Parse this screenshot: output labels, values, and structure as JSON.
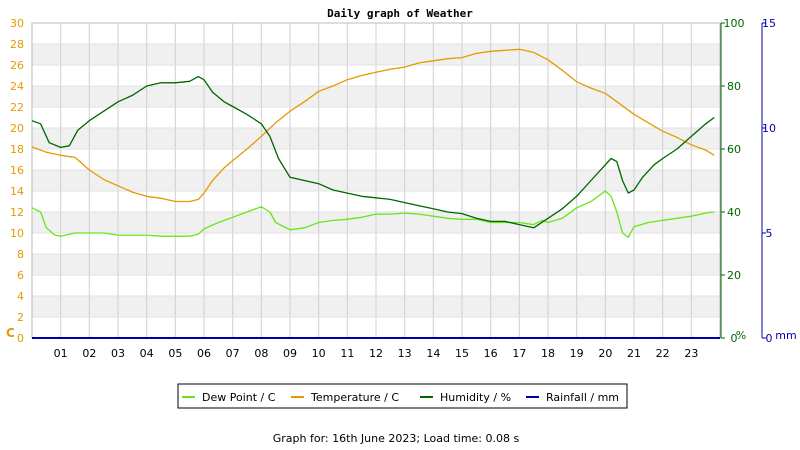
{
  "page": {
    "title": "Daily graph of Weather",
    "footer": "Graph for: 16th June 2023; Load time: 0.08 s"
  },
  "colors": {
    "dew_point": "#66e619",
    "temperature": "#e69a00",
    "humidity": "#006600",
    "rainfall": "#0000aa",
    "band": "#f0f0f0",
    "grid": "#cfcfcf"
  },
  "chart_data": {
    "type": "line",
    "title": "Daily graph of Weather",
    "x": {
      "unit": "hour",
      "range": [
        0,
        24
      ],
      "tick_labels": [
        "01",
        "02",
        "03",
        "04",
        "05",
        "06",
        "07",
        "08",
        "09",
        "10",
        "11",
        "12",
        "13",
        "14",
        "15",
        "16",
        "17",
        "18",
        "19",
        "20",
        "21",
        "22",
        "23"
      ]
    },
    "axes": {
      "left": {
        "label": "C",
        "range": [
          0,
          30
        ],
        "ticks": [
          "0",
          "2",
          "4",
          "6",
          "8",
          "10",
          "12",
          "14",
          "16",
          "18",
          "20",
          "22",
          "24",
          "26",
          "28",
          "30"
        ],
        "color": "#e69a00"
      },
      "right1": {
        "label": "%",
        "range": [
          0,
          100
        ],
        "ticks": [
          "0",
          "20",
          "40",
          "60",
          "80",
          "100"
        ],
        "color": "#006600"
      },
      "right2": {
        "label": "mm",
        "range": [
          0,
          15
        ],
        "ticks": [
          "0",
          "5",
          "10",
          "15"
        ],
        "color": "#0000aa"
      }
    },
    "grid": true,
    "legend": {
      "placement": "bottom",
      "entries": [
        {
          "label": "Dew Point / C",
          "color": "#66e619"
        },
        {
          "label": "Temperature / C",
          "color": "#e69a00"
        },
        {
          "label": "Humidity / %",
          "color": "#006600"
        },
        {
          "label": "Rainfall / mm",
          "color": "#0000aa"
        }
      ]
    },
    "series": [
      {
        "name": "Dew Point / C",
        "axis": "left",
        "color": "#66e619",
        "points": [
          [
            0,
            12.4
          ],
          [
            0.3,
            12.0
          ],
          [
            0.5,
            10.5
          ],
          [
            0.8,
            9.8
          ],
          [
            1.0,
            9.7
          ],
          [
            1.5,
            10.0
          ],
          [
            2,
            10.0
          ],
          [
            2.5,
            10.0
          ],
          [
            3,
            9.8
          ],
          [
            3.5,
            9.8
          ],
          [
            4,
            9.8
          ],
          [
            4.5,
            9.7
          ],
          [
            5,
            9.7
          ],
          [
            5.5,
            9.7
          ],
          [
            5.8,
            9.9
          ],
          [
            6,
            10.4
          ],
          [
            6.5,
            11.0
          ],
          [
            7,
            11.5
          ],
          [
            7.5,
            12.0
          ],
          [
            8,
            12.5
          ],
          [
            8.3,
            12.0
          ],
          [
            8.5,
            11.0
          ],
          [
            9,
            10.3
          ],
          [
            9.5,
            10.5
          ],
          [
            10,
            11.0
          ],
          [
            10.5,
            11.2
          ],
          [
            11,
            11.3
          ],
          [
            11.5,
            11.5
          ],
          [
            12,
            11.8
          ],
          [
            12.5,
            11.8
          ],
          [
            13,
            11.9
          ],
          [
            13.5,
            11.8
          ],
          [
            14,
            11.6
          ],
          [
            14.5,
            11.4
          ],
          [
            15,
            11.3
          ],
          [
            15.5,
            11.3
          ],
          [
            16,
            11.0
          ],
          [
            16.5,
            11.0
          ],
          [
            17,
            11.0
          ],
          [
            17.5,
            10.8
          ],
          [
            17.8,
            11.2
          ],
          [
            18,
            11.0
          ],
          [
            18.5,
            11.4
          ],
          [
            19,
            12.4
          ],
          [
            19.5,
            13.0
          ],
          [
            20,
            14.0
          ],
          [
            20.2,
            13.5
          ],
          [
            20.4,
            12.0
          ],
          [
            20.6,
            10.0
          ],
          [
            20.8,
            9.6
          ],
          [
            21,
            10.6
          ],
          [
            21.5,
            11.0
          ],
          [
            22,
            11.2
          ],
          [
            22.5,
            11.4
          ],
          [
            23,
            11.6
          ],
          [
            23.5,
            11.9
          ],
          [
            23.8,
            12.0
          ]
        ]
      },
      {
        "name": "Temperature / C",
        "axis": "left",
        "color": "#e69a00",
        "points": [
          [
            0,
            18.2
          ],
          [
            0.5,
            17.7
          ],
          [
            1,
            17.4
          ],
          [
            1.5,
            17.2
          ],
          [
            2,
            16.0
          ],
          [
            2.5,
            15.1
          ],
          [
            3,
            14.5
          ],
          [
            3.5,
            13.9
          ],
          [
            4,
            13.5
          ],
          [
            4.5,
            13.3
          ],
          [
            5,
            13.0
          ],
          [
            5.5,
            13.0
          ],
          [
            5.8,
            13.2
          ],
          [
            6,
            13.8
          ],
          [
            6.3,
            15.0
          ],
          [
            6.7,
            16.2
          ],
          [
            7,
            16.9
          ],
          [
            7.5,
            18.0
          ],
          [
            8,
            19.2
          ],
          [
            8.5,
            20.5
          ],
          [
            9,
            21.6
          ],
          [
            9.5,
            22.5
          ],
          [
            10,
            23.5
          ],
          [
            10.5,
            24.0
          ],
          [
            11,
            24.6
          ],
          [
            11.5,
            25.0
          ],
          [
            12,
            25.3
          ],
          [
            12.5,
            25.6
          ],
          [
            13,
            25.8
          ],
          [
            13.5,
            26.2
          ],
          [
            14,
            26.4
          ],
          [
            14.5,
            26.6
          ],
          [
            15,
            26.7
          ],
          [
            15.5,
            27.1
          ],
          [
            16,
            27.3
          ],
          [
            16.5,
            27.4
          ],
          [
            17,
            27.5
          ],
          [
            17.5,
            27.2
          ],
          [
            18,
            26.5
          ],
          [
            18.5,
            25.5
          ],
          [
            19,
            24.4
          ],
          [
            19.5,
            23.8
          ],
          [
            20,
            23.3
          ],
          [
            20.5,
            22.3
          ],
          [
            21,
            21.3
          ],
          [
            21.5,
            20.5
          ],
          [
            22,
            19.7
          ],
          [
            22.5,
            19.1
          ],
          [
            23,
            18.4
          ],
          [
            23.5,
            17.9
          ],
          [
            23.8,
            17.4
          ]
        ]
      },
      {
        "name": "Humidity / %",
        "axis": "right1",
        "color": "#006600",
        "points": [
          [
            0,
            69
          ],
          [
            0.3,
            68
          ],
          [
            0.6,
            62
          ],
          [
            1,
            60.5
          ],
          [
            1.3,
            61
          ],
          [
            1.6,
            66
          ],
          [
            2,
            69
          ],
          [
            2.5,
            72
          ],
          [
            3,
            75
          ],
          [
            3.5,
            77
          ],
          [
            4,
            80
          ],
          [
            4.5,
            81
          ],
          [
            5,
            81
          ],
          [
            5.5,
            81.5
          ],
          [
            5.8,
            83
          ],
          [
            6,
            82
          ],
          [
            6.3,
            78
          ],
          [
            6.7,
            75
          ],
          [
            7,
            73.5
          ],
          [
            7.5,
            71
          ],
          [
            8,
            68
          ],
          [
            8.3,
            64
          ],
          [
            8.6,
            57
          ],
          [
            9,
            51
          ],
          [
            9.5,
            50
          ],
          [
            10,
            49
          ],
          [
            10.5,
            47
          ],
          [
            11,
            46
          ],
          [
            11.5,
            45
          ],
          [
            12,
            44.5
          ],
          [
            12.5,
            44
          ],
          [
            13,
            43
          ],
          [
            13.5,
            42
          ],
          [
            14,
            41
          ],
          [
            14.5,
            40
          ],
          [
            15,
            39.5
          ],
          [
            15.5,
            38
          ],
          [
            16,
            37
          ],
          [
            16.5,
            37
          ],
          [
            17,
            36
          ],
          [
            17.5,
            35
          ],
          [
            18,
            38
          ],
          [
            18.5,
            41
          ],
          [
            19,
            45
          ],
          [
            19.5,
            50
          ],
          [
            20,
            55
          ],
          [
            20.2,
            57
          ],
          [
            20.4,
            56
          ],
          [
            20.6,
            50
          ],
          [
            20.8,
            46
          ],
          [
            21,
            47
          ],
          [
            21.3,
            51
          ],
          [
            21.7,
            55
          ],
          [
            22,
            57
          ],
          [
            22.5,
            60
          ],
          [
            23,
            64
          ],
          [
            23.5,
            68
          ],
          [
            23.8,
            70
          ]
        ]
      },
      {
        "name": "Rainfall / mm",
        "axis": "right2",
        "color": "#0000aa",
        "points": [
          [
            0,
            0
          ],
          [
            24,
            0
          ]
        ]
      }
    ]
  }
}
